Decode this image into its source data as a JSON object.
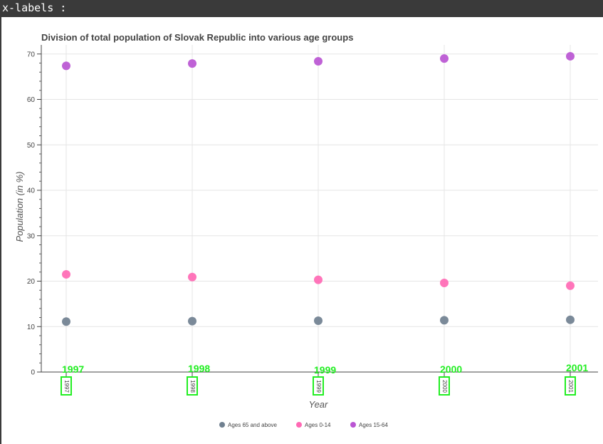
{
  "header": {
    "text": "x-labels :"
  },
  "chart_data": {
    "type": "scatter",
    "title": "Division of total population of Slovak Republic into various age groups",
    "xlabel": "Year",
    "ylabel": "Population (in %)",
    "x": [
      "1997",
      "1998",
      "1999",
      "2000",
      "2001"
    ],
    "ylim": [
      0,
      72
    ],
    "yticks": [
      0,
      10,
      20,
      30,
      40,
      50,
      60,
      70
    ],
    "grid": true,
    "legend_position": "bottom",
    "series": [
      {
        "name": "Ages 65 and above",
        "color": "#708090",
        "values": [
          11.1,
          11.2,
          11.3,
          11.4,
          11.5
        ]
      },
      {
        "name": "Ages 0-14",
        "color": "#ff69b4",
        "values": [
          21.5,
          20.9,
          20.3,
          19.6,
          19.0
        ]
      },
      {
        "name": "Ages 15-64",
        "color": "#ba55d3",
        "values": [
          67.4,
          67.9,
          68.4,
          69.0,
          69.5
        ]
      }
    ],
    "annotations": {
      "color": "#22ee22",
      "labels": [
        "1997",
        "1998",
        "1999",
        "2000",
        "2001"
      ]
    }
  }
}
